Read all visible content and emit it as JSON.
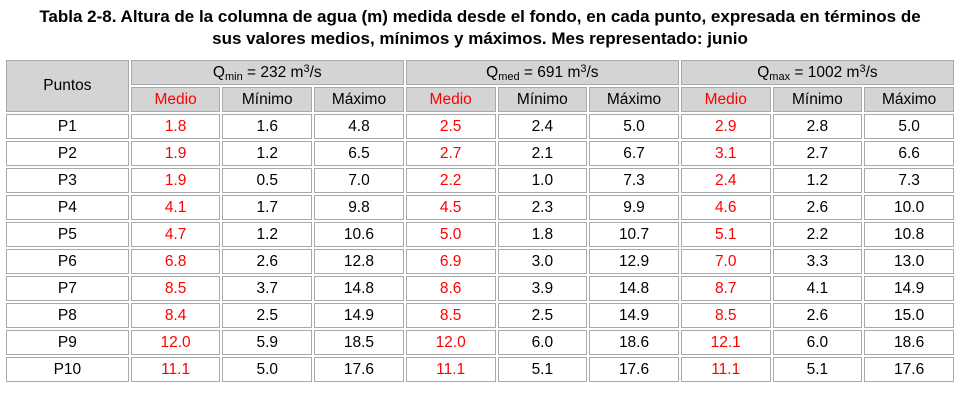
{
  "title": "Tabla 2-8. Altura de la columna de agua (m) medida desde el fondo, en cada punto, expresada en términos de sus valores medios, mínimos y máximos. Mes representado: junio",
  "colors": {
    "accent_red": "#ff0000",
    "header_bg": "#d4d4d4",
    "border_gray": "#a9a9a9"
  },
  "table": {
    "corner_header": "Puntos",
    "groups": [
      {
        "symbol": "Q",
        "subscript": "min",
        "middle": " = 232 m",
        "superscript": "3",
        "tail": "/s"
      },
      {
        "symbol": "Q",
        "subscript": "med",
        "middle": " = 691 m",
        "superscript": "3",
        "tail": "/s"
      },
      {
        "symbol": "Q",
        "subscript": "max",
        "middle": " = 1002 m",
        "superscript": "3",
        "tail": "/s"
      }
    ],
    "sub_headers": [
      "Medio",
      "Mínimo",
      "Máximo"
    ],
    "rows": [
      {
        "punto": "P1",
        "values": [
          "1.8",
          "1.6",
          "4.8",
          "2.5",
          "2.4",
          "5.0",
          "2.9",
          "2.8",
          "5.0"
        ]
      },
      {
        "punto": "P2",
        "values": [
          "1.9",
          "1.2",
          "6.5",
          "2.7",
          "2.1",
          "6.7",
          "3.1",
          "2.7",
          "6.6"
        ]
      },
      {
        "punto": "P3",
        "values": [
          "1.9",
          "0.5",
          "7.0",
          "2.2",
          "1.0",
          "7.3",
          "2.4",
          "1.2",
          "7.3"
        ]
      },
      {
        "punto": "P4",
        "values": [
          "4.1",
          "1.7",
          "9.8",
          "4.5",
          "2.3",
          "9.9",
          "4.6",
          "2.6",
          "10.0"
        ]
      },
      {
        "punto": "P5",
        "values": [
          "4.7",
          "1.2",
          "10.6",
          "5.0",
          "1.8",
          "10.7",
          "5.1",
          "2.2",
          "10.8"
        ]
      },
      {
        "punto": "P6",
        "values": [
          "6.8",
          "2.6",
          "12.8",
          "6.9",
          "3.0",
          "12.9",
          "7.0",
          "3.3",
          "13.0"
        ]
      },
      {
        "punto": "P7",
        "values": [
          "8.5",
          "3.7",
          "14.8",
          "8.6",
          "3.9",
          "14.8",
          "8.7",
          "4.1",
          "14.9"
        ]
      },
      {
        "punto": "P8",
        "values": [
          "8.4",
          "2.5",
          "14.9",
          "8.5",
          "2.5",
          "14.9",
          "8.5",
          "2.6",
          "15.0"
        ]
      },
      {
        "punto": "P9",
        "values": [
          "12.0",
          "5.9",
          "18.5",
          "12.0",
          "6.0",
          "18.6",
          "12.1",
          "6.0",
          "18.6"
        ]
      },
      {
        "punto": "P10",
        "values": [
          "11.1",
          "5.0",
          "17.6",
          "11.1",
          "5.1",
          "17.6",
          "11.1",
          "5.1",
          "17.6"
        ]
      }
    ]
  }
}
